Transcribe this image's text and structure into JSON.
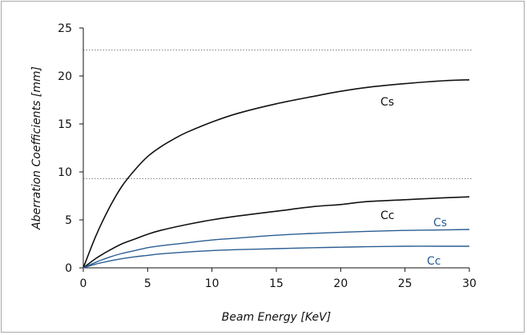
{
  "chart_data": {
    "type": "line",
    "title": "",
    "xlabel": "Beam Energy [KeV]",
    "ylabel": "Aberration Coefficients [mm]",
    "xlim": [
      0,
      30
    ],
    "ylim": [
      0,
      25
    ],
    "xticks": [
      0,
      5,
      10,
      15,
      20,
      25,
      30
    ],
    "yticks": [
      0,
      5,
      10,
      15,
      20,
      25
    ],
    "grid": "dotted horizontal lines at about y = 22.7 and y = 9.3",
    "reference_lines_y": [
      22.7,
      9.3
    ],
    "legend": "none; series labelled inline next to the curves",
    "series": [
      {
        "name": "Cs",
        "color": "#111111",
        "x": [
          0,
          1,
          2,
          3,
          4,
          5,
          6,
          7,
          8,
          10,
          12,
          15,
          18,
          20,
          22,
          25,
          28,
          30
        ],
        "y": [
          0,
          3.4,
          6.2,
          8.5,
          10.2,
          11.6,
          12.6,
          13.4,
          14.1,
          15.2,
          16.1,
          17.1,
          17.9,
          18.4,
          18.8,
          19.2,
          19.5,
          19.6
        ]
      },
      {
        "name": "Cc",
        "color": "#111111",
        "x": [
          0,
          1,
          2,
          3,
          4,
          5,
          6,
          8,
          10,
          12,
          15,
          18,
          20,
          22,
          25,
          28,
          30
        ],
        "y": [
          0,
          1.0,
          1.8,
          2.5,
          3.0,
          3.5,
          3.9,
          4.5,
          5.0,
          5.4,
          5.9,
          6.4,
          6.6,
          6.9,
          7.1,
          7.3,
          7.4
        ]
      },
      {
        "name": "Cs",
        "color": "#2a5d92",
        "x": [
          0,
          1,
          2,
          3,
          4,
          5,
          6,
          8,
          10,
          12,
          15,
          18,
          20,
          22,
          25,
          28,
          30
        ],
        "y": [
          0,
          0.6,
          1.1,
          1.5,
          1.8,
          2.1,
          2.3,
          2.6,
          2.9,
          3.1,
          3.4,
          3.6,
          3.7,
          3.8,
          3.9,
          3.95,
          4.0
        ]
      },
      {
        "name": "Cc",
        "color": "#2a5d92",
        "x": [
          0,
          1,
          2,
          3,
          4,
          5,
          6,
          8,
          10,
          12,
          15,
          18,
          20,
          22,
          25,
          28,
          30
        ],
        "y": [
          0,
          0.4,
          0.7,
          0.95,
          1.15,
          1.3,
          1.45,
          1.65,
          1.8,
          1.9,
          2.0,
          2.1,
          2.15,
          2.2,
          2.25,
          2.25,
          2.25
        ]
      }
    ]
  }
}
